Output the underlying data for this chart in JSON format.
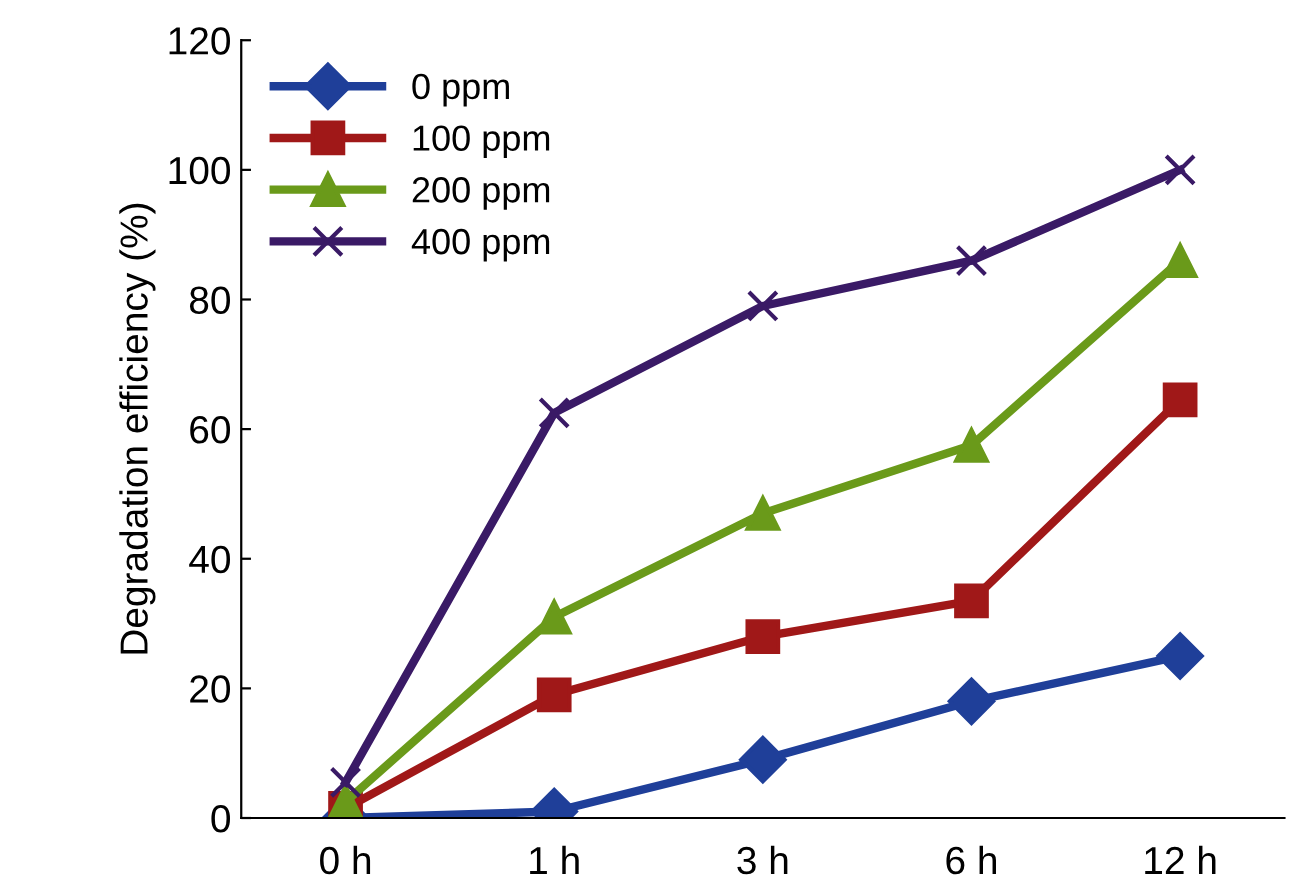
{
  "chart_data": {
    "type": "line",
    "ylabel": "Degradation efficiency (%)",
    "categories": [
      "0 h",
      "1 h",
      "3 h",
      "6 h",
      "12 h"
    ],
    "series": [
      {
        "name": "0 ppm",
        "color": "#1f3f99",
        "marker": "diamond",
        "values": [
          0,
          1,
          9,
          18,
          25
        ]
      },
      {
        "name": "100 ppm",
        "color": "#a01818",
        "marker": "square",
        "values": [
          1.5,
          19,
          28,
          33.5,
          64.5
        ]
      },
      {
        "name": "200 ppm",
        "color": "#6a9a1a",
        "marker": "triangle",
        "values": [
          2.5,
          31,
          47,
          57.5,
          86
        ]
      },
      {
        "name": "400 ppm",
        "color": "#3a1a66",
        "marker": "cross",
        "values": [
          5.5,
          62.5,
          79,
          86,
          100
        ]
      }
    ],
    "ylim": [
      0,
      120
    ],
    "yticks": [
      0,
      20,
      40,
      60,
      80,
      100,
      120
    ],
    "grid": false,
    "legend": "top left",
    "line_style": "solid"
  }
}
